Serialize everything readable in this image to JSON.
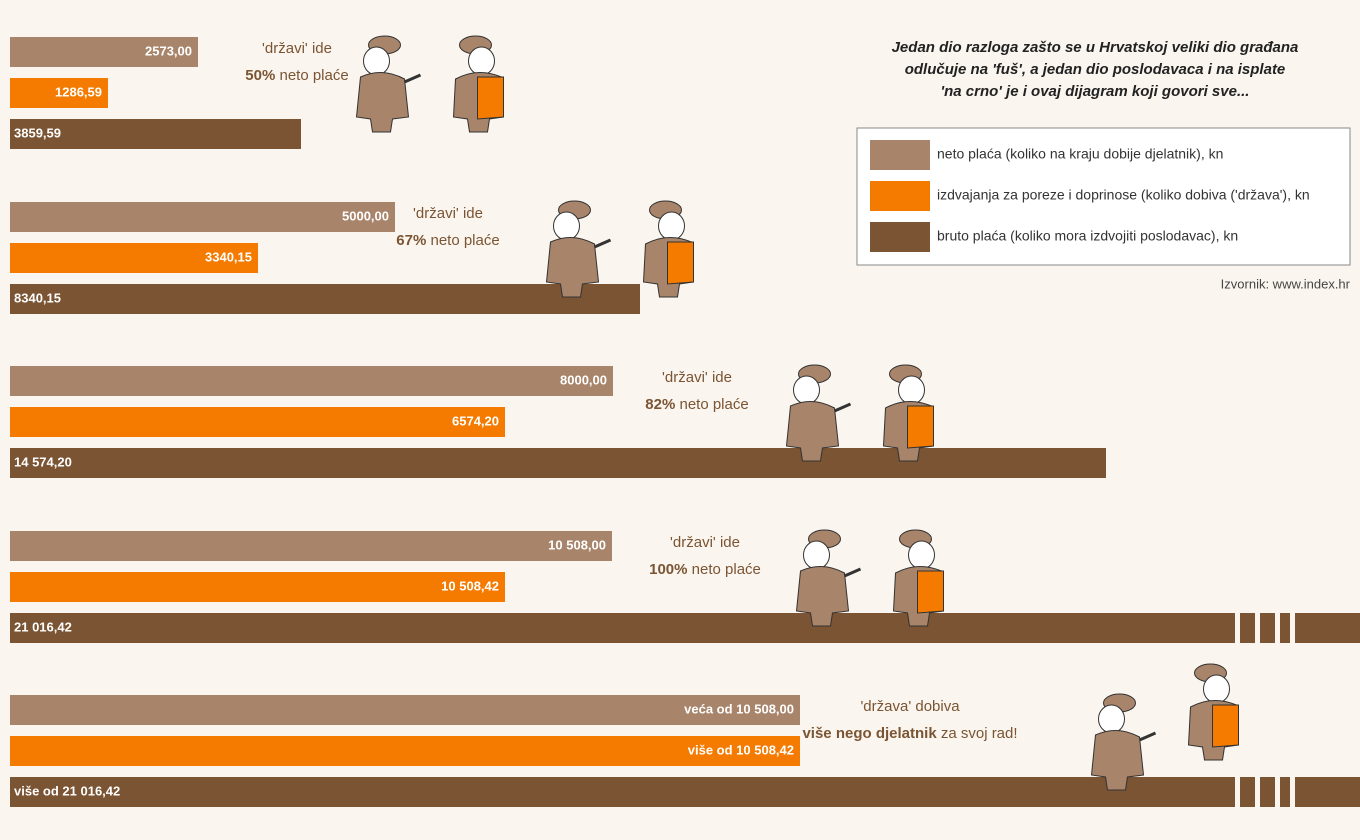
{
  "title": "Jedan dio razloga zašto se u Hrvatskoj veliki dio građana odlučuje na 'fuš', a jedan dio poslodavaca i na isplate 'na crno' je i ovaj dijagram koji govori sve...",
  "legend": [
    {
      "label": "neto plaća (koliko na kraju dobije djelatnik), kn",
      "color": "#a8846a"
    },
    {
      "label": "izdvajanja za poreze i doprinose (koliko dobiva ('država'), kn",
      "color": "#f47b00"
    },
    {
      "label": "bruto plaća (koliko mora izdvojiti poslodavac), kn",
      "color": "#7b5433"
    }
  ],
  "source": "Izvornik: www.index.hr",
  "groups": [
    {
      "bars": [
        "2573,00",
        "1286,59",
        "3859,59"
      ],
      "note": [
        "'državi' ide",
        "50%",
        " neto plaće"
      ]
    },
    {
      "bars": [
        "5000,00",
        "3340,15",
        "8340,15"
      ],
      "note": [
        "'državi' ide",
        "67%",
        " neto plaće"
      ]
    },
    {
      "bars": [
        "8000,00",
        "6574,20",
        "14 574,20"
      ],
      "note": [
        "'državi' ide",
        "82%",
        " neto plaće"
      ]
    },
    {
      "bars": [
        "10 508,00",
        "10 508,42",
        "21 016,42"
      ],
      "note": [
        "'državi' ide",
        "100%",
        " neto plaće"
      ]
    },
    {
      "bars": [
        "veća od 10 508,00",
        "više od 10 508,42",
        "više od 21 016,42"
      ],
      "note": [
        "'država' dobiva",
        "više nego djelatnik",
        " za svoj rad!"
      ]
    }
  ]
}
